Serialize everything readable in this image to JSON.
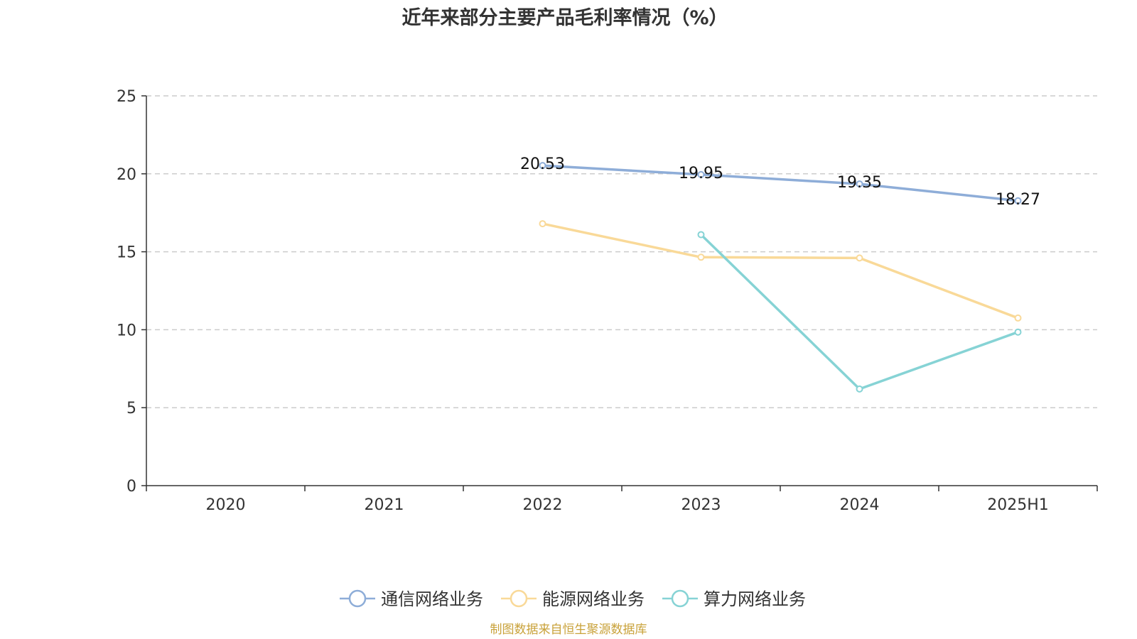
{
  "chart_data": {
    "type": "line",
    "title": "近年来部分主要产品毛利率情况（%）",
    "categories": [
      "2020",
      "2021",
      "2022",
      "2023",
      "2024",
      "2025H1"
    ],
    "ylim": [
      0,
      25
    ],
    "yticks": [
      "0",
      "5",
      "10",
      "15",
      "20",
      "25"
    ],
    "grid": true,
    "legend_position": "bottom",
    "series": [
      {
        "name": "通信网络业务",
        "color": "#8eadd8",
        "values": [
          null,
          null,
          20.53,
          19.95,
          19.35,
          18.27
        ],
        "labels": [
          "",
          "",
          "20.53",
          "19.95",
          "19.35",
          "18.27"
        ]
      },
      {
        "name": "能源网络业务",
        "color": "#f9d998",
        "values": [
          null,
          null,
          16.8,
          14.65,
          14.6,
          10.75
        ]
      },
      {
        "name": "算力网络业务",
        "color": "#86d3d5",
        "values": [
          null,
          null,
          null,
          16.1,
          6.2,
          9.85
        ]
      }
    ],
    "source": "制图数据来自恒生聚源数据库"
  }
}
